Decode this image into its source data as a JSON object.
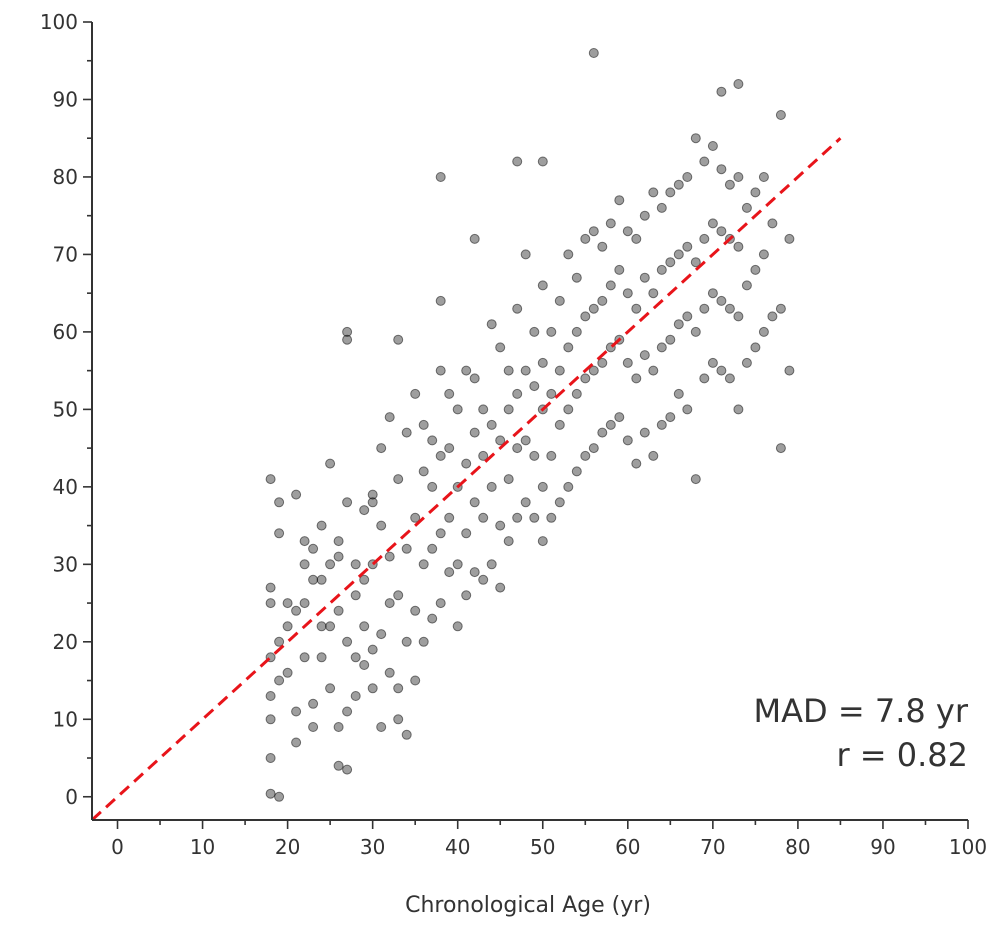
{
  "chart_data": {
    "type": "scatter",
    "title": "",
    "xlabel": "Chronological Age (yr)",
    "ylabel": "",
    "xlim": [
      -3,
      100
    ],
    "ylim": [
      -3,
      100
    ],
    "x_ticks": [
      "0",
      "10",
      "20",
      "30",
      "40",
      "50",
      "60",
      "70",
      "80",
      "90",
      "100"
    ],
    "y_ticks": [
      "0",
      "10",
      "20",
      "30",
      "40",
      "50",
      "60",
      "70",
      "80",
      "90",
      "100"
    ],
    "grid": false,
    "legend": "none",
    "annotations": [
      "MAD = 7.8 yr",
      "r = 0.82"
    ],
    "reference_line": {
      "x": [
        -3,
        85
      ],
      "y": [
        -3,
        85
      ],
      "color": "#e8141a",
      "style": "dashed"
    },
    "colors": {
      "points": "#000000",
      "reference_line": "#e8141a",
      "axis": "#333333"
    },
    "series": [
      {
        "x": [
          18,
          18,
          18,
          18,
          18,
          18,
          18,
          18,
          19,
          19,
          19,
          19,
          19,
          20,
          20,
          20,
          21,
          21,
          21,
          21,
          22,
          22,
          22,
          22,
          23,
          23,
          23,
          23,
          24,
          24,
          24,
          24,
          25,
          25,
          25,
          25,
          26,
          26,
          26,
          26,
          26,
          27,
          27,
          27,
          27,
          27,
          28,
          28,
          28,
          28,
          29,
          29,
          29,
          29,
          30,
          30,
          30,
          30,
          31,
          31,
          31,
          31,
          32,
          32,
          32,
          32,
          33,
          33,
          33,
          33,
          33,
          34,
          34,
          34,
          34,
          35,
          35,
          35,
          35,
          36,
          36,
          36,
          36,
          37,
          37,
          37,
          37,
          38,
          38,
          38,
          38,
          38,
          39,
          39,
          39,
          39,
          40,
          40,
          40,
          40,
          41,
          41,
          41,
          41,
          42,
          42,
          42,
          42,
          43,
          43,
          43,
          43,
          44,
          44,
          44,
          44,
          45,
          45,
          45,
          45,
          46,
          46,
          46,
          46,
          47,
          47,
          47,
          47,
          48,
          48,
          48,
          48,
          49,
          49,
          49,
          49,
          50,
          50,
          50,
          50,
          50,
          51,
          51,
          51,
          51,
          52,
          52,
          52,
          52,
          53,
          53,
          53,
          53,
          54,
          54,
          54,
          54,
          55,
          55,
          55,
          55,
          56,
          56,
          56,
          56,
          57,
          57,
          57,
          57,
          58,
          58,
          58,
          58,
          59,
          59,
          59,
          59,
          60,
          60,
          60,
          60,
          61,
          61,
          61,
          61,
          62,
          62,
          62,
          62,
          63,
          63,
          63,
          63,
          64,
          64,
          64,
          64,
          65,
          65,
          65,
          65,
          66,
          66,
          66,
          66,
          67,
          67,
          67,
          67,
          68,
          68,
          68,
          68,
          69,
          69,
          69,
          69,
          70,
          70,
          70,
          70,
          71,
          71,
          71,
          71,
          72,
          72,
          72,
          72,
          73,
          73,
          73,
          73,
          74,
          74,
          74,
          75,
          75,
          75,
          76,
          76,
          76,
          77,
          77,
          78,
          78,
          78,
          79,
          79,
          56,
          71,
          73,
          42,
          47,
          50,
          38,
          30,
          27
        ],
        "y": [
          0.4,
          5,
          10,
          13,
          18,
          25,
          27,
          41,
          0,
          15,
          20,
          34,
          38,
          16,
          22,
          25,
          7,
          11,
          24,
          39,
          18,
          25,
          30,
          33,
          9,
          12,
          28,
          32,
          18,
          22,
          28,
          35,
          14,
          22,
          30,
          43,
          4,
          9,
          24,
          31,
          33,
          3.5,
          11,
          20,
          38,
          59,
          13,
          18,
          26,
          30,
          17,
          22,
          28,
          37,
          14,
          19,
          30,
          39,
          9,
          21,
          35,
          45,
          16,
          25,
          31,
          49,
          10,
          14,
          26,
          41,
          59,
          8,
          20,
          32,
          47,
          15,
          24,
          36,
          52,
          20,
          30,
          42,
          48,
          23,
          32,
          40,
          46,
          25,
          34,
          44,
          55,
          64,
          29,
          36,
          45,
          52,
          22,
          30,
          40,
          50,
          26,
          34,
          43,
          55,
          29,
          38,
          47,
          54,
          28,
          36,
          44,
          50,
          30,
          40,
          48,
          61,
          27,
          35,
          46,
          58,
          33,
          41,
          50,
          55,
          36,
          45,
          52,
          63,
          38,
          46,
          55,
          70,
          36,
          44,
          53,
          60,
          33,
          40,
          50,
          56,
          66,
          36,
          44,
          52,
          60,
          38,
          48,
          55,
          64,
          40,
          50,
          58,
          70,
          42,
          52,
          60,
          67,
          44,
          54,
          62,
          72,
          45,
          55,
          63,
          73,
          47,
          56,
          64,
          71,
          48,
          58,
          66,
          74,
          49,
          59,
          68,
          77,
          46,
          56,
          65,
          73,
          43,
          54,
          63,
          72,
          47,
          57,
          67,
          75,
          44,
          55,
          65,
          78,
          48,
          58,
          68,
          76,
          49,
          59,
          69,
          78,
          52,
          61,
          70,
          79,
          50,
          62,
          71,
          80,
          41,
          60,
          69,
          85,
          54,
          63,
          72,
          82,
          56,
          65,
          74,
          84,
          55,
          64,
          73,
          81,
          54,
          63,
          72,
          79,
          50,
          62,
          71,
          80,
          56,
          66,
          76,
          58,
          68,
          78,
          60,
          70,
          80,
          62,
          74,
          45,
          63,
          88,
          55,
          72,
          96,
          91,
          92,
          72,
          82,
          82,
          80,
          38,
          60
        ],
        "marker": "circle"
      }
    ]
  }
}
